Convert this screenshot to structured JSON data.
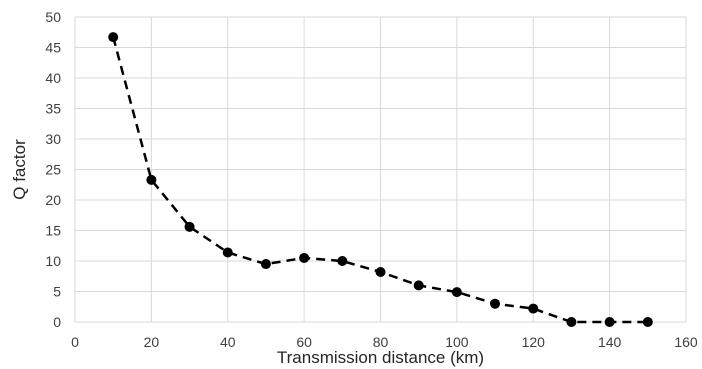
{
  "chart_data": {
    "type": "line",
    "xlabel": "Transmission distance (km)",
    "ylabel": "Q factor",
    "xlim": [
      0,
      160
    ],
    "ylim": [
      0,
      50
    ],
    "x_ticks": [
      0,
      20,
      40,
      60,
      80,
      100,
      120,
      140,
      160
    ],
    "y_ticks": [
      0,
      5,
      10,
      15,
      20,
      25,
      30,
      35,
      40,
      45,
      50
    ],
    "grid": true,
    "legend": "none",
    "series": [
      {
        "x": [
          10,
          20,
          30,
          40,
          50,
          60,
          70,
          80,
          90,
          100,
          110,
          120,
          130,
          140,
          150
        ],
        "y": [
          46.7,
          23.3,
          15.6,
          11.4,
          9.5,
          10.5,
          10.0,
          8.2,
          6.0,
          4.9,
          3.0,
          2.2,
          0.0,
          0.0,
          0.0
        ],
        "color": "#000000",
        "line_style": "dashed",
        "marker": "circle"
      }
    ]
  }
}
